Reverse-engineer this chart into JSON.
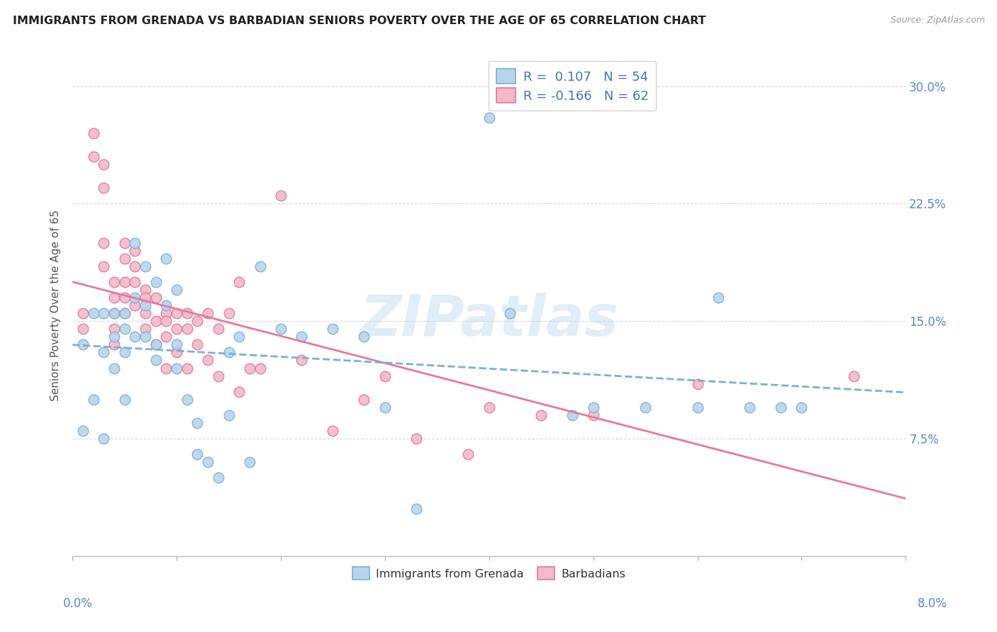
{
  "title": "IMMIGRANTS FROM GRENADA VS BARBADIAN SENIORS POVERTY OVER THE AGE OF 65 CORRELATION CHART",
  "source": "Source: ZipAtlas.com",
  "ylabel": "Seniors Poverty Over the Age of 65",
  "y_ticks": [
    0.0,
    0.075,
    0.15,
    0.225,
    0.3
  ],
  "y_tick_labels_right": [
    "",
    "7.5%",
    "15.0%",
    "22.5%",
    "30.0%"
  ],
  "xlim": [
    0.0,
    0.08
  ],
  "ylim": [
    0.0,
    0.32
  ],
  "grenada_R": 0.107,
  "grenada_N": 54,
  "barbados_R": -0.166,
  "barbados_N": 62,
  "color_grenada_fill": "#b8d4ed",
  "color_grenada_edge": "#7bafd4",
  "color_barbados_fill": "#f4b8c8",
  "color_barbados_edge": "#e07898",
  "color_grenada_line": "#7bafd4",
  "color_barbados_line": "#e8789a",
  "color_text_blue": "#4472c4",
  "color_label_blue": "#5588cc",
  "grenada_scatter_x": [
    0.001,
    0.001,
    0.002,
    0.002,
    0.003,
    0.003,
    0.003,
    0.004,
    0.004,
    0.004,
    0.005,
    0.005,
    0.005,
    0.005,
    0.006,
    0.006,
    0.006,
    0.007,
    0.007,
    0.007,
    0.008,
    0.008,
    0.008,
    0.009,
    0.009,
    0.01,
    0.01,
    0.01,
    0.011,
    0.012,
    0.012,
    0.013,
    0.014,
    0.015,
    0.015,
    0.016,
    0.017,
    0.018,
    0.02,
    0.022,
    0.025,
    0.028,
    0.03,
    0.033,
    0.04,
    0.042,
    0.048,
    0.05,
    0.055,
    0.06,
    0.062,
    0.065,
    0.068,
    0.07
  ],
  "grenada_scatter_y": [
    0.135,
    0.08,
    0.155,
    0.1,
    0.155,
    0.13,
    0.075,
    0.155,
    0.14,
    0.12,
    0.155,
    0.145,
    0.13,
    0.1,
    0.2,
    0.165,
    0.14,
    0.185,
    0.16,
    0.14,
    0.175,
    0.135,
    0.125,
    0.19,
    0.16,
    0.17,
    0.135,
    0.12,
    0.1,
    0.085,
    0.065,
    0.06,
    0.05,
    0.13,
    0.09,
    0.14,
    0.06,
    0.185,
    0.145,
    0.14,
    0.145,
    0.14,
    0.095,
    0.03,
    0.28,
    0.155,
    0.09,
    0.095,
    0.095,
    0.095,
    0.165,
    0.095,
    0.095,
    0.095
  ],
  "barbados_scatter_x": [
    0.001,
    0.001,
    0.002,
    0.002,
    0.003,
    0.003,
    0.003,
    0.003,
    0.004,
    0.004,
    0.004,
    0.004,
    0.004,
    0.005,
    0.005,
    0.005,
    0.005,
    0.005,
    0.006,
    0.006,
    0.006,
    0.006,
    0.007,
    0.007,
    0.007,
    0.007,
    0.008,
    0.008,
    0.008,
    0.009,
    0.009,
    0.009,
    0.009,
    0.01,
    0.01,
    0.01,
    0.011,
    0.011,
    0.011,
    0.012,
    0.012,
    0.013,
    0.013,
    0.014,
    0.014,
    0.015,
    0.016,
    0.016,
    0.017,
    0.018,
    0.02,
    0.022,
    0.025,
    0.028,
    0.03,
    0.033,
    0.038,
    0.04,
    0.045,
    0.05,
    0.06,
    0.075
  ],
  "barbados_scatter_y": [
    0.145,
    0.155,
    0.27,
    0.255,
    0.25,
    0.235,
    0.2,
    0.185,
    0.175,
    0.165,
    0.155,
    0.145,
    0.135,
    0.2,
    0.19,
    0.175,
    0.165,
    0.155,
    0.195,
    0.185,
    0.175,
    0.16,
    0.17,
    0.165,
    0.155,
    0.145,
    0.165,
    0.15,
    0.135,
    0.155,
    0.15,
    0.14,
    0.12,
    0.155,
    0.145,
    0.13,
    0.155,
    0.145,
    0.12,
    0.15,
    0.135,
    0.155,
    0.125,
    0.145,
    0.115,
    0.155,
    0.175,
    0.105,
    0.12,
    0.12,
    0.23,
    0.125,
    0.08,
    0.1,
    0.115,
    0.075,
    0.065,
    0.095,
    0.09,
    0.09,
    0.11,
    0.115
  ],
  "watermark": "ZIPatlas",
  "background_color": "#ffffff",
  "grid_color": "#d8d8d8"
}
